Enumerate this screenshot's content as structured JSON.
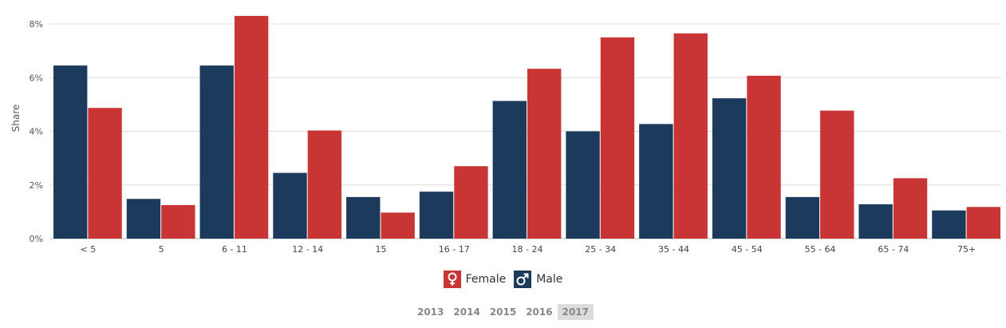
{
  "chart_data": {
    "type": "bar",
    "ylabel": "Share",
    "ylim": [
      0,
      8
    ],
    "yticks": [
      "0%",
      "2%",
      "4%",
      "6%",
      "8%"
    ],
    "ytick_values": [
      0,
      2,
      4,
      6,
      8
    ],
    "categories": [
      "< 5",
      "5",
      "6 - 11",
      "12 - 14",
      "15",
      "16 - 17",
      "18 - 24",
      "25 - 34",
      "35 - 44",
      "45 - 54",
      "55 - 64",
      "65 - 74",
      "75+"
    ],
    "series": [
      {
        "name": "Male",
        "color": "#1b3a5c",
        "values": [
          6.45,
          1.48,
          6.45,
          2.45,
          1.55,
          1.75,
          5.13,
          4.0,
          4.27,
          5.23,
          1.55,
          1.28,
          1.05
        ]
      },
      {
        "name": "Female",
        "color": "#c93434",
        "values": [
          4.87,
          1.25,
          8.3,
          4.03,
          0.97,
          2.7,
          6.33,
          7.5,
          7.65,
          6.07,
          4.77,
          2.25,
          1.18
        ]
      }
    ],
    "grid": true,
    "legend_placement": "bottom-center"
  },
  "legend": [
    {
      "label": "Female",
      "color": "#c93434",
      "icon": "female-symbol-icon"
    },
    {
      "label": "Male",
      "color": "#1b3a5c",
      "icon": "male-symbol-icon"
    }
  ],
  "years": {
    "options": [
      "2013",
      "2014",
      "2015",
      "2016",
      "2017"
    ],
    "selected": "2017"
  }
}
